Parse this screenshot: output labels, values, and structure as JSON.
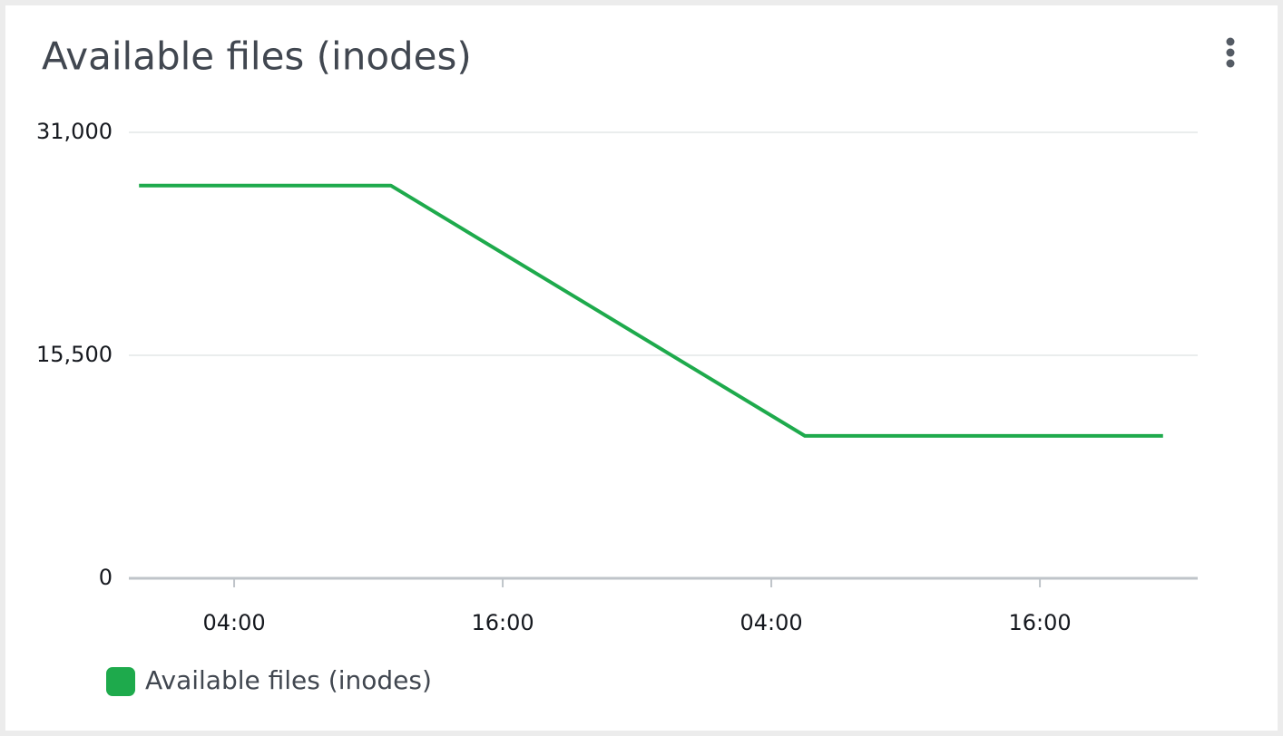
{
  "chart_data": {
    "type": "line",
    "title": "Available files (inodes)",
    "x": [
      -0.25,
      11,
      29.5,
      45.5
    ],
    "series": [
      {
        "name": "Available files (inodes)",
        "color": "#1eaa4c",
        "values": [
          27300,
          27300,
          9900,
          9900
        ]
      }
    ],
    "xlim": [
      -0.38,
      47.05
    ],
    "xticks": [
      {
        "value": 4,
        "label": "04:00"
      },
      {
        "value": 16,
        "label": "16:00"
      },
      {
        "value": 28,
        "label": "04:00"
      },
      {
        "value": 40,
        "label": "16:00"
      }
    ],
    "ylim": [
      0,
      31000
    ],
    "yticks": [
      0,
      {
        "value": 15500,
        "label": "15,500"
      },
      {
        "value": 31000,
        "label": "31,000"
      }
    ],
    "grid": true
  }
}
